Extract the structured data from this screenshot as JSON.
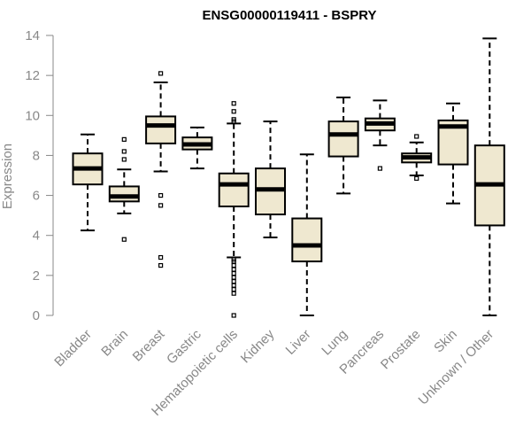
{
  "chart_data": {
    "type": "boxplot",
    "title": "ENSG00000119411 - BSPRY",
    "xlabel": "",
    "ylabel": "Expression",
    "ylim": [
      0,
      14
    ],
    "yticks": [
      0,
      2,
      4,
      6,
      8,
      10,
      12,
      14
    ],
    "box_color": "#efe8d0",
    "categories": [
      "Bladder",
      "Brain",
      "Breast",
      "Gastric",
      "Hematopoietic cells",
      "Kidney",
      "Liver",
      "Lung",
      "Pancreas",
      "Prostate",
      "Skin",
      "Unknown / Other"
    ],
    "boxes": [
      {
        "name": "Bladder",
        "whisker_low": 4.25,
        "q1": 6.55,
        "median": 7.35,
        "q3": 8.1,
        "whisker_high": 9.05,
        "outliers": []
      },
      {
        "name": "Brain",
        "whisker_low": 5.1,
        "q1": 5.7,
        "median": 5.95,
        "q3": 6.45,
        "whisker_high": 7.3,
        "outliers": [
          3.8,
          7.8,
          8.2,
          8.8
        ]
      },
      {
        "name": "Breast",
        "whisker_low": 7.2,
        "q1": 8.6,
        "median": 9.5,
        "q3": 9.95,
        "whisker_high": 11.65,
        "outliers": [
          2.5,
          2.9,
          5.5,
          6.0,
          12.1
        ]
      },
      {
        "name": "Gastric",
        "whisker_low": 7.35,
        "q1": 8.3,
        "median": 8.55,
        "q3": 8.9,
        "whisker_high": 9.4,
        "outliers": []
      },
      {
        "name": "Hematopoietic cells",
        "whisker_low": 2.9,
        "q1": 5.45,
        "median": 6.55,
        "q3": 7.1,
        "whisker_high": 9.6,
        "outliers": [
          0.0,
          1.1,
          1.3,
          1.5,
          1.7,
          1.9,
          2.1,
          2.3,
          2.5,
          2.7,
          2.8,
          9.7,
          9.8,
          10.2,
          10.6
        ]
      },
      {
        "name": "Kidney",
        "whisker_low": 3.9,
        "q1": 5.05,
        "median": 6.3,
        "q3": 7.35,
        "whisker_high": 9.7,
        "outliers": []
      },
      {
        "name": "Liver",
        "whisker_low": 0.0,
        "q1": 2.7,
        "median": 3.5,
        "q3": 4.85,
        "whisker_high": 8.05,
        "outliers": []
      },
      {
        "name": "Lung",
        "whisker_low": 6.1,
        "q1": 7.95,
        "median": 9.05,
        "q3": 9.7,
        "whisker_high": 10.9,
        "outliers": []
      },
      {
        "name": "Pancreas",
        "whisker_low": 8.5,
        "q1": 9.25,
        "median": 9.6,
        "q3": 9.85,
        "whisker_high": 10.75,
        "outliers": [
          7.35
        ]
      },
      {
        "name": "Prostate",
        "whisker_low": 7.0,
        "q1": 7.65,
        "median": 7.9,
        "q3": 8.1,
        "whisker_high": 8.65,
        "outliers": [
          6.85,
          8.95
        ]
      },
      {
        "name": "Skin",
        "whisker_low": 5.6,
        "q1": 7.55,
        "median": 9.45,
        "q3": 9.75,
        "whisker_high": 10.6,
        "outliers": []
      },
      {
        "name": "Unknown / Other",
        "whisker_low": 0.0,
        "q1": 4.5,
        "median": 6.55,
        "q3": 8.5,
        "whisker_high": 13.85,
        "outliers": []
      }
    ]
  }
}
